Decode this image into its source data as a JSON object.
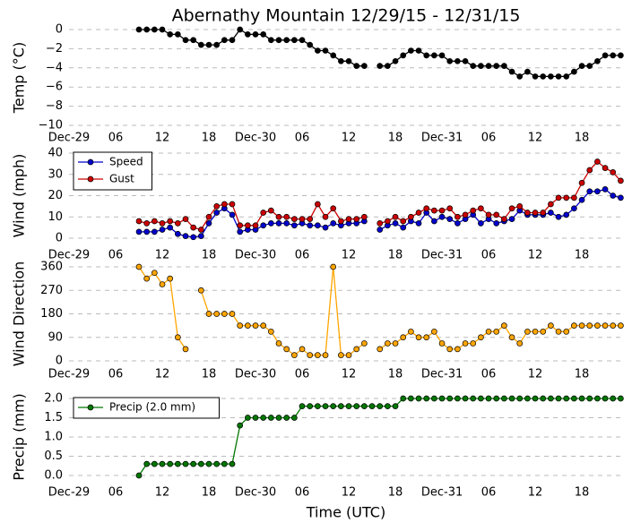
{
  "chart_data": [
    {
      "type": "line",
      "title": "Abernathy Mountain 12/29/15 - 12/31/15",
      "ylabel": "Temp (°C)",
      "xlim": [
        0,
        71.3
      ],
      "xticks": [
        {
          "value": 0,
          "label": "Dec-29"
        },
        {
          "value": 6,
          "label": "06"
        },
        12,
        18,
        {
          "value": 24,
          "label": "Dec-30"
        },
        {
          "value": 30,
          "label": "06"
        },
        {
          "value": 36,
          "label": "12"
        },
        {
          "value": 42,
          "label": "18"
        },
        {
          "value": 48,
          "label": "Dec-31"
        },
        {
          "value": 54,
          "label": "06"
        },
        {
          "value": 60,
          "label": "12"
        },
        {
          "value": 66,
          "label": "18"
        }
      ],
      "ylim": [
        -10,
        0
      ],
      "yticks": [
        0,
        {
          "value": -2,
          "label": "−2"
        },
        {
          "value": -4,
          "label": "−4"
        },
        {
          "value": -6,
          "label": "−6"
        },
        {
          "value": -8,
          "label": "−8"
        },
        {
          "value": -10,
          "label": "−10"
        }
      ],
      "grid": true,
      "x": [
        9,
        10,
        11,
        12,
        13,
        14,
        15,
        16,
        17,
        18,
        19,
        20,
        21,
        22,
        23,
        24,
        25,
        26,
        27,
        28,
        29,
        30,
        31,
        32,
        33,
        34,
        35,
        36,
        37,
        38,
        39,
        40,
        41,
        42,
        43,
        44,
        45,
        46,
        47,
        48,
        49,
        50,
        51,
        52,
        53,
        54,
        55,
        56,
        57,
        58,
        59,
        60,
        61,
        62,
        63,
        64,
        65,
        66,
        67,
        68,
        69,
        70,
        71
      ],
      "series": [
        {
          "color": "#000000",
          "values": [
            0,
            0,
            0,
            0,
            -0.5,
            -0.5,
            -1.1,
            -1.1,
            -1.6,
            -1.6,
            -1.6,
            -1.1,
            -1.1,
            0,
            -0.5,
            -0.5,
            -0.5,
            -1.1,
            -1.1,
            -1.1,
            -1.1,
            -1.1,
            -1.6,
            -2.2,
            -2.2,
            -2.7,
            -3.3,
            -3.3,
            -3.8,
            -3.8,
            null,
            -3.8,
            -3.8,
            -3.3,
            -2.7,
            -2.2,
            -2.2,
            -2.7,
            -2.7,
            -2.7,
            -3.3,
            -3.3,
            -3.3,
            -3.8,
            -3.8,
            -3.8,
            -3.8,
            -3.8,
            -4.4,
            -4.9,
            -4.4,
            -4.9,
            -4.9,
            -4.9,
            -4.9,
            -4.9,
            -4.4,
            -3.8,
            -3.8,
            -3.3,
            -2.7,
            -2.7,
            -2.7
          ]
        }
      ]
    },
    {
      "type": "line",
      "ylabel": "Wind (mph)",
      "xlim": [
        0,
        71.3
      ],
      "xticks": [
        {
          "value": 0,
          "label": "Dec-29"
        },
        {
          "value": 6,
          "label": "06"
        },
        12,
        18,
        {
          "value": 24,
          "label": "Dec-30"
        },
        {
          "value": 30,
          "label": "06"
        },
        {
          "value": 36,
          "label": "12"
        },
        {
          "value": 42,
          "label": "18"
        },
        {
          "value": 48,
          "label": "Dec-31"
        },
        {
          "value": 54,
          "label": "06"
        },
        {
          "value": 60,
          "label": "12"
        },
        {
          "value": 66,
          "label": "18"
        }
      ],
      "ylim": [
        0,
        40
      ],
      "yticks": [
        0,
        10,
        20,
        30,
        40
      ],
      "grid": true,
      "legend": "upper left",
      "x": [
        9,
        10,
        11,
        12,
        13,
        14,
        15,
        16,
        17,
        18,
        19,
        20,
        21,
        22,
        23,
        24,
        25,
        26,
        27,
        28,
        29,
        30,
        31,
        32,
        33,
        34,
        35,
        36,
        37,
        38,
        39,
        40,
        41,
        42,
        43,
        44,
        45,
        46,
        47,
        48,
        49,
        50,
        51,
        52,
        53,
        54,
        55,
        56,
        57,
        58,
        59,
        60,
        61,
        62,
        63,
        64,
        65,
        66,
        67,
        68,
        69,
        70,
        71
      ],
      "series": [
        {
          "name": "Speed",
          "color": "#0000cc",
          "values": [
            3,
            3,
            3,
            4,
            5,
            2,
            1,
            0.5,
            1,
            7,
            12,
            14,
            11,
            3,
            4,
            4,
            6,
            7,
            7,
            7,
            6,
            7,
            6,
            6,
            5,
            7,
            6,
            7,
            7,
            8,
            null,
            4,
            6,
            7,
            5,
            8,
            7,
            12,
            8,
            10,
            9,
            7,
            9,
            11,
            7,
            9,
            7,
            8,
            9,
            13,
            11,
            11,
            11,
            12,
            10,
            11,
            14,
            18,
            22,
            22,
            23,
            20,
            19
          ]
        },
        {
          "name": "Gust",
          "color": "#cc0000",
          "values": [
            8,
            7,
            8,
            7,
            8,
            7,
            9,
            5,
            4,
            10,
            15,
            16,
            16,
            6,
            6,
            6,
            12,
            13,
            10,
            10,
            9,
            9,
            9,
            16,
            10,
            14,
            8,
            9,
            9,
            10,
            null,
            7,
            8,
            10,
            8,
            10,
            12,
            14,
            13,
            13,
            14,
            10,
            11,
            13,
            14,
            11,
            11,
            9,
            14,
            15,
            12,
            12,
            12,
            16,
            19,
            19,
            19,
            26,
            32,
            36,
            33,
            31,
            27
          ]
        }
      ]
    },
    {
      "type": "line",
      "ylabel": "Wind Direction",
      "xlim": [
        0,
        71.3
      ],
      "xticks": [
        {
          "value": 0,
          "label": "Dec-29"
        },
        {
          "value": 6,
          "label": "06"
        },
        12,
        18,
        {
          "value": 24,
          "label": "Dec-30"
        },
        {
          "value": 30,
          "label": "06"
        },
        {
          "value": 36,
          "label": "12"
        },
        {
          "value": 42,
          "label": "18"
        },
        {
          "value": 48,
          "label": "Dec-31"
        },
        {
          "value": 54,
          "label": "06"
        },
        {
          "value": 60,
          "label": "12"
        },
        {
          "value": 66,
          "label": "18"
        }
      ],
      "ylim": [
        0,
        360
      ],
      "yticks": [
        0,
        90,
        180,
        270,
        360
      ],
      "grid": true,
      "x": [
        9,
        10,
        11,
        12,
        13,
        14,
        15,
        16,
        17,
        18,
        19,
        20,
        21,
        22,
        23,
        24,
        25,
        26,
        27,
        28,
        29,
        30,
        31,
        32,
        33,
        34,
        35,
        36,
        37,
        38,
        39,
        40,
        41,
        42,
        43,
        44,
        45,
        46,
        47,
        48,
        49,
        50,
        51,
        52,
        53,
        54,
        55,
        56,
        57,
        58,
        59,
        60,
        61,
        62,
        63,
        64,
        65,
        66,
        67,
        68,
        69,
        70,
        71
      ],
      "series": [
        {
          "color": "#ffa500",
          "values": [
            360,
            315,
            337,
            293,
            315,
            90,
            45,
            null,
            270,
            180,
            180,
            180,
            180,
            135,
            135,
            135,
            135,
            112,
            67,
            45,
            22,
            45,
            22,
            22,
            22,
            360,
            22,
            22,
            45,
            67,
            null,
            45,
            67,
            67,
            90,
            112,
            90,
            90,
            112,
            67,
            45,
            45,
            67,
            67,
            90,
            112,
            112,
            135,
            90,
            67,
            112,
            112,
            112,
            135,
            112,
            112,
            135,
            135,
            135,
            135,
            135,
            135,
            135
          ]
        }
      ]
    },
    {
      "type": "line",
      "ylabel": "Precip (mm)",
      "xlabel": "Time (UTC)",
      "xlim": [
        0,
        71.3
      ],
      "xticks": [
        {
          "value": 0,
          "label": "Dec-29"
        },
        {
          "value": 6,
          "label": "06"
        },
        12,
        18,
        {
          "value": 24,
          "label": "Dec-30"
        },
        {
          "value": 30,
          "label": "06"
        },
        {
          "value": 36,
          "label": "12"
        },
        {
          "value": 42,
          "label": "18"
        },
        {
          "value": 48,
          "label": "Dec-31"
        },
        {
          "value": 54,
          "label": "06"
        },
        {
          "value": 60,
          "label": "12"
        },
        {
          "value": 66,
          "label": "18"
        }
      ],
      "ylim": [
        0,
        2
      ],
      "yticks": [
        {
          "value": 0,
          "label": "0.0"
        },
        {
          "value": 0.5,
          "label": "0.5"
        },
        {
          "value": 1,
          "label": "1.0"
        },
        {
          "value": 1.5,
          "label": "1.5"
        },
        {
          "value": 2,
          "label": "2.0"
        }
      ],
      "grid": true,
      "legend": "upper left",
      "x": [
        9,
        10,
        11,
        12,
        13,
        14,
        15,
        16,
        17,
        18,
        19,
        20,
        21,
        22,
        23,
        24,
        25,
        26,
        27,
        28,
        29,
        30,
        31,
        32,
        33,
        34,
        35,
        36,
        37,
        38,
        39,
        40,
        41,
        42,
        43,
        44,
        45,
        46,
        47,
        48,
        49,
        50,
        51,
        52,
        53,
        54,
        55,
        56,
        57,
        58,
        59,
        60,
        61,
        62,
        63,
        64,
        65,
        66,
        67,
        68,
        69,
        70,
        71
      ],
      "series": [
        {
          "name": "Precip (2.0 mm)",
          "color": "#007700",
          "values": [
            0,
            0.3,
            0.3,
            0.3,
            0.3,
            0.3,
            0.3,
            0.3,
            0.3,
            0.3,
            0.3,
            0.3,
            0.3,
            1.3,
            1.5,
            1.5,
            1.5,
            1.5,
            1.5,
            1.5,
            1.5,
            1.8,
            1.8,
            1.8,
            1.8,
            1.8,
            1.8,
            1.8,
            1.8,
            1.8,
            1.8,
            1.8,
            1.8,
            1.8,
            2,
            2,
            2,
            2,
            2,
            2,
            2,
            2,
            2,
            2,
            2,
            2,
            2,
            2,
            2,
            2,
            2,
            2,
            2,
            2,
            2,
            2,
            2,
            2,
            2,
            2,
            2,
            2,
            2
          ]
        }
      ]
    }
  ]
}
